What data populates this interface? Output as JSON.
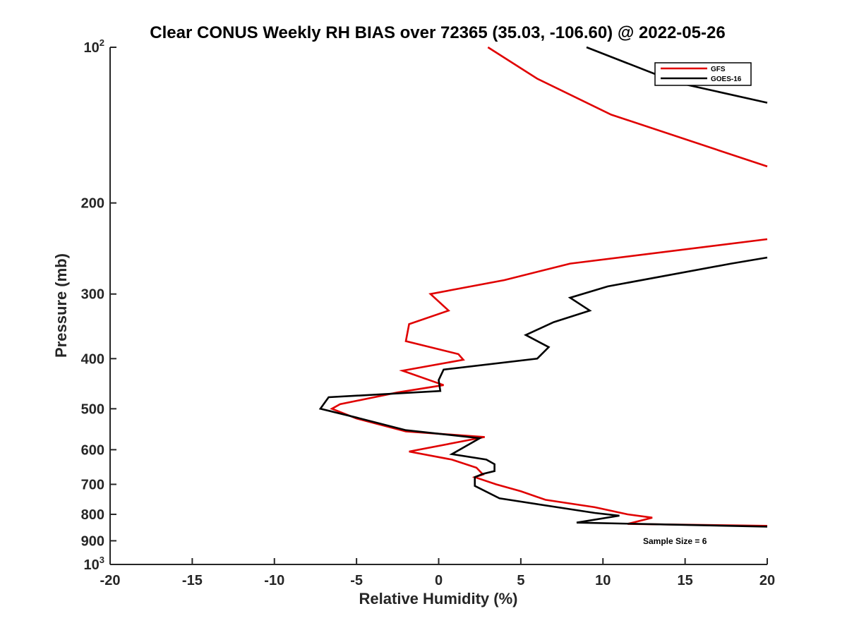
{
  "chart_data": {
    "type": "line",
    "title": "Clear CONUS Weekly RH BIAS over 72365 (35.03, -106.60) @ 2022-05-26",
    "xlabel": "Relative Humidity (%)",
    "ylabel": "Pressure (mb)",
    "xlim": [
      -20,
      20
    ],
    "ylim": [
      100,
      1000
    ],
    "y_scale": "log",
    "y_reversed": true,
    "x_ticks": [
      "-20",
      "-15",
      "-10",
      "-5",
      "0",
      "5",
      "10",
      "15",
      "20"
    ],
    "y_ticks": [
      {
        "value": 100,
        "base": "10",
        "exp": "2"
      },
      {
        "value": 200,
        "label": "200"
      },
      {
        "value": 300,
        "label": "300"
      },
      {
        "value": 400,
        "label": "400"
      },
      {
        "value": 500,
        "label": "500"
      },
      {
        "value": 600,
        "label": "600"
      },
      {
        "value": 700,
        "label": "700"
      },
      {
        "value": 800,
        "label": "800"
      },
      {
        "value": 900,
        "label": "900"
      },
      {
        "value": 1000,
        "base": "10",
        "exp": "3"
      }
    ],
    "grid": false,
    "legend_position": "top-right",
    "series": [
      {
        "name": "GFS",
        "color": "#e00000",
        "points": [
          [
            3,
            100
          ],
          [
            6,
            115
          ],
          [
            10.5,
            135
          ],
          [
            20,
            170
          ],
          [
            null,
            null
          ],
          [
            20,
            235
          ],
          [
            8,
            262
          ],
          [
            4,
            282
          ],
          [
            -0.5,
            300
          ],
          [
            0.6,
            323
          ],
          [
            -1.8,
            343
          ],
          [
            -2.0,
            370
          ],
          [
            1.2,
            392
          ],
          [
            1.5,
            402
          ],
          [
            -2.2,
            422
          ],
          [
            0.3,
            450
          ],
          [
            -2.5,
            465
          ],
          [
            -6,
            490
          ],
          [
            -6.5,
            500
          ],
          [
            -5,
            522
          ],
          [
            -2,
            553
          ],
          [
            2.8,
            567
          ],
          [
            -1.8,
            605
          ],
          [
            0.8,
            627
          ],
          [
            2.3,
            650
          ],
          [
            2.7,
            670
          ],
          [
            2.2,
            678
          ],
          [
            3.5,
            700
          ],
          [
            5,
            722
          ],
          [
            6.5,
            750
          ],
          [
            9.5,
            775
          ],
          [
            11.5,
            800
          ],
          [
            13,
            812
          ],
          [
            11.5,
            835
          ],
          [
            20,
            842
          ]
        ]
      },
      {
        "name": "GOES-16",
        "color": "#000000",
        "points": [
          [
            9,
            100
          ],
          [
            14.5,
            117
          ],
          [
            20,
            128
          ],
          [
            null,
            null
          ],
          [
            20,
            255
          ],
          [
            17.8,
            262
          ],
          [
            10.3,
            290
          ],
          [
            8,
            305
          ],
          [
            9.2,
            323
          ],
          [
            7,
            340
          ],
          [
            5.3,
            360
          ],
          [
            6.7,
            380
          ],
          [
            6,
            400
          ],
          [
            0.3,
            420
          ],
          [
            0.0,
            440
          ],
          [
            0.1,
            462
          ],
          [
            -6.7,
            475
          ],
          [
            -7.2,
            500
          ],
          [
            -5,
            520
          ],
          [
            -2,
            550
          ],
          [
            2.5,
            570
          ],
          [
            0.8,
            612
          ],
          [
            2.9,
            627
          ],
          [
            3.4,
            640
          ],
          [
            3.4,
            660
          ],
          [
            2.7,
            668
          ],
          [
            2.2,
            678
          ],
          [
            2.2,
            705
          ],
          [
            3.7,
            745
          ],
          [
            9.5,
            795
          ],
          [
            11,
            805
          ],
          [
            8.4,
            830
          ],
          [
            20,
            845
          ]
        ]
      }
    ],
    "annotations": [
      "Sample Size = 6"
    ]
  }
}
